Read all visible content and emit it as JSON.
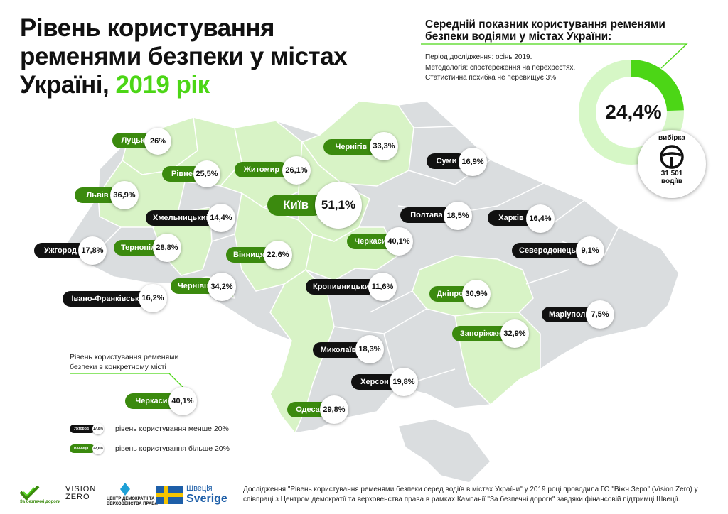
{
  "title": {
    "main": "Рівень користування ременями безпеки у містах Україні,",
    "year": "2019 рік"
  },
  "average_panel": {
    "title": "Середній показник користування ременями безпеки водіями  у містах України:",
    "notes": [
      "Період дослідження: осінь 2019.",
      "Методологія: спостереження на перехрестях.",
      "Статистична похибка не перевищує 3%."
    ],
    "value_label": "24,4%",
    "value": 24.4,
    "sample_label": "вибірка",
    "sample_count": "31 501",
    "sample_unit": "водіїв",
    "colors": {
      "fill": "#4cd616",
      "track": "#d6f7c6"
    }
  },
  "colors": {
    "green_region": "#d8f3c6",
    "gray_region": "#dadddf",
    "border": "#ffffff",
    "green_pill": "#3b8a0e",
    "black_pill": "#111111"
  },
  "cities": [
    {
      "name": "Луцьк",
      "value": "26%",
      "group": "green"
    },
    {
      "name": "Рівне",
      "value": "25,5%",
      "group": "green"
    },
    {
      "name": "Житомир",
      "value": "26,1%",
      "group": "green"
    },
    {
      "name": "Чернігів",
      "value": "33,3%",
      "group": "green"
    },
    {
      "name": "Суми",
      "value": "16,9%",
      "group": "black"
    },
    {
      "name": "Львів",
      "value": "36,9%",
      "group": "green"
    },
    {
      "name": "Київ",
      "value": "51,1%",
      "group": "green"
    },
    {
      "name": "Хмельницький",
      "value": "14,4%",
      "group": "black"
    },
    {
      "name": "Полтава",
      "value": "18,5%",
      "group": "black"
    },
    {
      "name": "Харків",
      "value": "16,4%",
      "group": "black"
    },
    {
      "name": "Ужгород",
      "value": "17,8%",
      "group": "black"
    },
    {
      "name": "Тернопіль",
      "value": "28,8%",
      "group": "green"
    },
    {
      "name": "Вінниця",
      "value": "22,6%",
      "group": "green"
    },
    {
      "name": "Черкаси",
      "value": "40,1%",
      "group": "green"
    },
    {
      "name": "Северодонецьк",
      "value": "9,1%",
      "group": "black"
    },
    {
      "name": "Чернівці",
      "value": "34,2%",
      "group": "green"
    },
    {
      "name": "Кропивницький",
      "value": "11,6%",
      "group": "black"
    },
    {
      "name": "Дніпро",
      "value": "30,9%",
      "group": "green"
    },
    {
      "name": "Івано-Франківськ",
      "value": "16,2%",
      "group": "black"
    },
    {
      "name": "Маріуполь",
      "value": "7,5%",
      "group": "black"
    },
    {
      "name": "Запоріжжя",
      "value": "32,9%",
      "group": "green"
    },
    {
      "name": "Миколаїв",
      "value": "18,3%",
      "group": "black"
    },
    {
      "name": "Херсон",
      "value": "19,8%",
      "group": "black"
    },
    {
      "name": "Одеса",
      "value": "29,8%",
      "group": "green"
    }
  ],
  "legend": {
    "caption": "Рівень користування ременями безпеки в конкретному місті",
    "example": {
      "name": "Черкаси",
      "value": "40,1%"
    },
    "below": {
      "mini_name": "Ужгород",
      "mini_value": "17,8%",
      "text": "рівень користування менше 20%"
    },
    "above": {
      "mini_name": "Вінниця",
      "mini_value": "22,6%",
      "text": "рівень користування більше 20%"
    }
  },
  "logos": {
    "vzp": "За безпечні дороги",
    "vision_zero": [
      "VISION",
      "ZERO"
    ],
    "centre": [
      "ЦЕНТР ДЕМОКРАТІЇ ТА",
      "ВЕРХОВЕНСТВА ПРАВА"
    ],
    "sweden": [
      "Швеція",
      "Sverige"
    ]
  },
  "footer": "Дослідження \"Рівень користування ременями безпеки серед водіїв в містах України\" у 2019 році проводила ГО \"Віжн Зеро\" (Vision Zero) у співпраці з Центром демократії та верховенства права в рамках Кампанії \"За безпечні дороги\" завдяки фінансовій підтримці Швеції."
}
